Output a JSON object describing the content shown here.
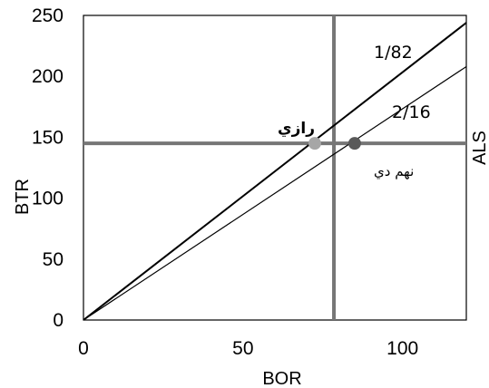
{
  "chart_data": {
    "type": "line",
    "xlabel": "BOR",
    "ylabel": "BTR",
    "right_label": "ALS",
    "xlim": [
      0,
      120
    ],
    "ylim": [
      0,
      250
    ],
    "xticks": [
      0,
      50,
      100
    ],
    "yticks": [
      0,
      50,
      100,
      150,
      200,
      250
    ],
    "grid": false,
    "series": [
      {
        "name": "1/82",
        "x": [
          0,
          120
        ],
        "y": [
          0,
          244
        ],
        "color": "#000000"
      },
      {
        "name": "2/16",
        "x": [
          0,
          120
        ],
        "y": [
          0,
          208
        ],
        "color": "#000000"
      }
    ],
    "reference_lines": {
      "horizontal_y": 145,
      "vertical_x": 78.5,
      "color": "#767676"
    },
    "points": [
      {
        "label": "رازي",
        "x": 72.5,
        "y": 145,
        "color": "#a6a6a6"
      },
      {
        "label": "نهم دي",
        "x": 85,
        "y": 145,
        "color": "#595959"
      }
    ]
  }
}
